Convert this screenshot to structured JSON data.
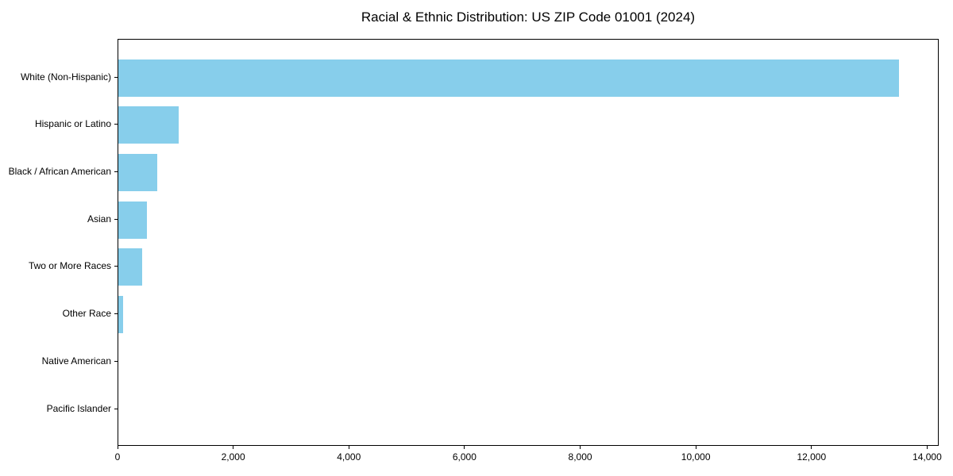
{
  "chart_data": {
    "type": "bar",
    "orientation": "horizontal",
    "title": "Racial & Ethnic Distribution: US ZIP Code 01001 (2024)",
    "categories": [
      "White (Non-Hispanic)",
      "Hispanic or Latino",
      "Black / African American",
      "Asian",
      "Two or More Races",
      "Other Race",
      "Native American",
      "Pacific Islander"
    ],
    "values": [
      13520,
      1050,
      675,
      500,
      410,
      80,
      0,
      0
    ],
    "xlabel": "",
    "ylabel": "",
    "xlim": [
      0,
      14200
    ],
    "x_ticks": [
      0,
      2000,
      4000,
      6000,
      8000,
      10000,
      12000,
      14000
    ],
    "x_tick_labels": [
      "0",
      "2,000",
      "4,000",
      "6,000",
      "8,000",
      "10,000",
      "12,000",
      "14,000"
    ],
    "bar_color": "#87CEEB",
    "axis_color": "#000000",
    "background_color": "#ffffff",
    "grid": false,
    "legend": null
  }
}
